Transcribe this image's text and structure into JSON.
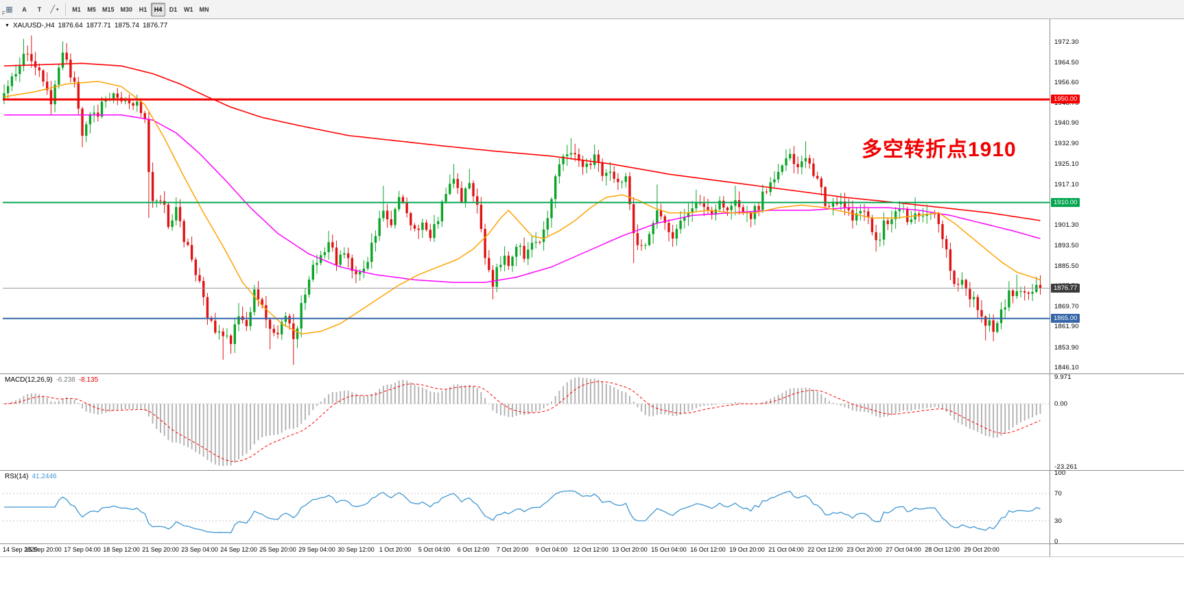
{
  "toolbar": {
    "pattern_button": "▦",
    "f_label": "F",
    "a_button": "A",
    "t_button": "T",
    "tools_icon": "╱",
    "tools_caret": "▾",
    "timeframes": [
      "M1",
      "M5",
      "M15",
      "M30",
      "H1",
      "H4",
      "D1",
      "W1",
      "MN"
    ],
    "active_timeframe": "H4"
  },
  "chart": {
    "collapse_icon": "▼",
    "symbol_period": "XAUUSD-,H4",
    "open": "1876.64",
    "high": "1877.71",
    "low": "1875.74",
    "close": "1876.77",
    "annotation": "多空转折点1910",
    "annotation_color": "#f00000",
    "price_scale_labels": [
      "1972.30",
      "1964.50",
      "1956.60",
      "1948.70",
      "1940.90",
      "1932.90",
      "1925.10",
      "1917.10",
      "1909.30",
      "1901.30",
      "1893.50",
      "1885.50",
      "1877.70",
      "1869.70",
      "1861.90",
      "1853.90",
      "1846.10"
    ],
    "levels": [
      {
        "price": 1950.0,
        "label": "1950.00",
        "color": "#f40000",
        "thickness": 3
      },
      {
        "price": 1910.0,
        "label": "1910.00",
        "color": "#00a650",
        "thickness": 2
      },
      {
        "price": 1865.0,
        "label": "1865.00",
        "color": "#3465a8",
        "thickness": 2
      }
    ],
    "current_price": {
      "price": 1876.77,
      "label": "1876.77",
      "line_color": "#9a9a9a",
      "tag_bg": "#3c3c3c"
    },
    "time_labels": [
      "14 Sep 2020",
      "15 Sep 20:00",
      "17 Sep 04:00",
      "18 Sep 12:00",
      "21 Sep 20:00",
      "23 Sep 04:00",
      "24 Sep 12:00",
      "25 Sep 20:00",
      "29 Sep 04:00",
      "30 Sep 12:00",
      "1 Oct 20:00",
      "5 Oct 04:00",
      "6 Oct 12:00",
      "7 Oct 20:00",
      "9 Oct 04:00",
      "12 Oct 12:00",
      "13 Oct 20:00",
      "15 Oct 04:00",
      "16 Oct 12:00",
      "19 Oct 20:00",
      "21 Oct 04:00",
      "22 Oct 12:00",
      "23 Oct 20:00",
      "27 Oct 04:00",
      "28 Oct 12:00",
      "29 Oct 20:00"
    ]
  },
  "chart_data": {
    "type": "candlestick",
    "symbol": "XAUUSD",
    "timeframe": "H4",
    "candle_count": 266,
    "y_range": [
      1844.2,
      1980.6
    ],
    "up_color": "#0ba426",
    "down_color": "#e01212",
    "last_price": 1876.77,
    "price_path": [
      [
        0,
        1954
      ],
      [
        3,
        1960
      ],
      [
        6,
        1969
      ],
      [
        8,
        1964
      ],
      [
        10,
        1957
      ],
      [
        12,
        1948
      ],
      [
        14,
        1962
      ],
      [
        15,
        1969
      ],
      [
        16,
        1964
      ],
      [
        18,
        1956
      ],
      [
        20,
        1938
      ],
      [
        22,
        1946
      ],
      [
        24,
        1944
      ],
      [
        26,
        1950
      ],
      [
        28,
        1953
      ],
      [
        30,
        1948
      ],
      [
        32,
        1947
      ],
      [
        34,
        1950
      ],
      [
        36,
        1941
      ],
      [
        37,
        1920
      ],
      [
        38,
        1910
      ],
      [
        40,
        1912
      ],
      [
        42,
        1902
      ],
      [
        44,
        1907
      ],
      [
        46,
        1896
      ],
      [
        48,
        1888
      ],
      [
        50,
        1880
      ],
      [
        52,
        1866
      ],
      [
        54,
        1858
      ],
      [
        56,
        1860
      ],
      [
        58,
        1856
      ],
      [
        60,
        1868
      ],
      [
        62,
        1862
      ],
      [
        64,
        1875
      ],
      [
        66,
        1868
      ],
      [
        68,
        1861
      ],
      [
        70,
        1857
      ],
      [
        72,
        1866
      ],
      [
        74,
        1856
      ],
      [
        76,
        1870
      ],
      [
        78,
        1881
      ],
      [
        80,
        1888
      ],
      [
        83,
        1894
      ],
      [
        85,
        1887
      ],
      [
        87,
        1892
      ],
      [
        89,
        1885
      ],
      [
        91,
        1882
      ],
      [
        93,
        1889
      ],
      [
        95,
        1899
      ],
      [
        97,
        1907
      ],
      [
        99,
        1902
      ],
      [
        101,
        1910
      ],
      [
        103,
        1906
      ],
      [
        105,
        1899
      ],
      [
        107,
        1902
      ],
      [
        109,
        1897
      ],
      [
        111,
        1904
      ],
      [
        113,
        1914
      ],
      [
        115,
        1917
      ],
      [
        117,
        1912
      ],
      [
        119,
        1918
      ],
      [
        121,
        1907
      ],
      [
        123,
        1889
      ],
      [
        125,
        1878
      ],
      [
        127,
        1888
      ],
      [
        129,
        1887
      ],
      [
        131,
        1894
      ],
      [
        133,
        1889
      ],
      [
        135,
        1896
      ],
      [
        137,
        1895
      ],
      [
        139,
        1904
      ],
      [
        141,
        1919
      ],
      [
        143,
        1927
      ],
      [
        145,
        1931
      ],
      [
        147,
        1927
      ],
      [
        149,
        1924
      ],
      [
        151,
        1929
      ],
      [
        153,
        1921
      ],
      [
        155,
        1924
      ],
      [
        157,
        1916
      ],
      [
        159,
        1921
      ],
      [
        161,
        1896
      ],
      [
        163,
        1892
      ],
      [
        165,
        1899
      ],
      [
        167,
        1907
      ],
      [
        169,
        1902
      ],
      [
        171,
        1897
      ],
      [
        173,
        1902
      ],
      [
        175,
        1907
      ],
      [
        177,
        1911
      ],
      [
        179,
        1907
      ],
      [
        181,
        1904
      ],
      [
        183,
        1909
      ],
      [
        185,
        1907
      ],
      [
        187,
        1911
      ],
      [
        189,
        1907
      ],
      [
        191,
        1904
      ],
      [
        193,
        1909
      ],
      [
        195,
        1916
      ],
      [
        197,
        1919
      ],
      [
        199,
        1924
      ],
      [
        201,
        1927
      ],
      [
        203,
        1924
      ],
      [
        205,
        1929
      ],
      [
        207,
        1921
      ],
      [
        209,
        1914
      ],
      [
        211,
        1907
      ],
      [
        213,
        1911
      ],
      [
        215,
        1907
      ],
      [
        217,
        1904
      ],
      [
        219,
        1907
      ],
      [
        221,
        1902
      ],
      [
        223,
        1894
      ],
      [
        225,
        1901
      ],
      [
        227,
        1904
      ],
      [
        229,
        1907
      ],
      [
        231,
        1904
      ],
      [
        233,
        1907
      ],
      [
        235,
        1904
      ],
      [
        237,
        1907
      ],
      [
        239,
        1902
      ],
      [
        241,
        1893
      ],
      [
        243,
        1877
      ],
      [
        245,
        1879
      ],
      [
        247,
        1874
      ],
      [
        249,
        1869
      ],
      [
        251,
        1864
      ],
      [
        253,
        1861
      ],
      [
        255,
        1867
      ],
      [
        257,
        1874
      ],
      [
        259,
        1877
      ],
      [
        261,
        1876
      ],
      [
        263,
        1875
      ],
      [
        265,
        1876.8
      ]
    ],
    "wick_events": [
      [
        5,
        "high",
        1973.5
      ],
      [
        7,
        "high",
        1974.8
      ],
      [
        12,
        "low",
        1944
      ],
      [
        15,
        "high",
        1972.5
      ],
      [
        20,
        "low",
        1931.5
      ],
      [
        37,
        "low",
        1904
      ],
      [
        44,
        "high",
        1912
      ],
      [
        56,
        "low",
        1849
      ],
      [
        60,
        "high",
        1871
      ],
      [
        64,
        "high",
        1878
      ],
      [
        68,
        "low",
        1853
      ],
      [
        74,
        "low",
        1847
      ],
      [
        83,
        "high",
        1899
      ],
      [
        97,
        "high",
        1916.5
      ],
      [
        101,
        "high",
        1914
      ],
      [
        115,
        "high",
        1925
      ],
      [
        119,
        "high",
        1923
      ],
      [
        125,
        "low",
        1872.5
      ],
      [
        145,
        "high",
        1935
      ],
      [
        151,
        "high",
        1932.5
      ],
      [
        161,
        "low",
        1886.5
      ],
      [
        167,
        "high",
        1917
      ],
      [
        177,
        "high",
        1915
      ],
      [
        187,
        "high",
        1916.5
      ],
      [
        205,
        "high",
        1933.8
      ],
      [
        223,
        "low",
        1891
      ],
      [
        233,
        "high",
        1912
      ],
      [
        251,
        "low",
        1856.5
      ],
      [
        259,
        "high",
        1882
      ],
      [
        265,
        "high",
        1879
      ]
    ],
    "ma_lines": [
      {
        "name": "ma-slow-red",
        "color": "#ff0000",
        "width": 1.6,
        "path": [
          [
            0,
            1963
          ],
          [
            20,
            1964
          ],
          [
            30,
            1963
          ],
          [
            38,
            1960
          ],
          [
            45,
            1956
          ],
          [
            52,
            1951
          ],
          [
            58,
            1947
          ],
          [
            66,
            1943
          ],
          [
            75,
            1940
          ],
          [
            88,
            1936
          ],
          [
            100,
            1934
          ],
          [
            112,
            1932
          ],
          [
            125,
            1930
          ],
          [
            140,
            1928
          ],
          [
            155,
            1925
          ],
          [
            170,
            1921
          ],
          [
            185,
            1918
          ],
          [
            200,
            1915
          ],
          [
            215,
            1912
          ],
          [
            228,
            1910
          ],
          [
            240,
            1908
          ],
          [
            252,
            1906
          ],
          [
            265,
            1903
          ]
        ]
      },
      {
        "name": "ma-mid-magenta",
        "color": "#ff00ff",
        "width": 1.5,
        "path": [
          [
            0,
            1944
          ],
          [
            30,
            1944
          ],
          [
            38,
            1942
          ],
          [
            44,
            1937
          ],
          [
            50,
            1929
          ],
          [
            57,
            1918
          ],
          [
            63,
            1908
          ],
          [
            70,
            1898
          ],
          [
            78,
            1890
          ],
          [
            86,
            1885
          ],
          [
            95,
            1882
          ],
          [
            105,
            1880
          ],
          [
            115,
            1879
          ],
          [
            123,
            1879
          ],
          [
            131,
            1881
          ],
          [
            140,
            1885
          ],
          [
            149,
            1891
          ],
          [
            158,
            1897
          ],
          [
            167,
            1902
          ],
          [
            176,
            1905
          ],
          [
            186,
            1906
          ],
          [
            196,
            1907
          ],
          [
            206,
            1907
          ],
          [
            216,
            1908
          ],
          [
            226,
            1908
          ],
          [
            234,
            1907
          ],
          [
            242,
            1905
          ],
          [
            250,
            1902
          ],
          [
            258,
            1899
          ],
          [
            265,
            1896
          ]
        ]
      },
      {
        "name": "ma-fast-orange",
        "color": "#ffa200",
        "width": 1.5,
        "path": [
          [
            0,
            1951
          ],
          [
            8,
            1953
          ],
          [
            16,
            1956
          ],
          [
            24,
            1957
          ],
          [
            30,
            1955
          ],
          [
            36,
            1948
          ],
          [
            41,
            1935
          ],
          [
            46,
            1920
          ],
          [
            51,
            1906
          ],
          [
            56,
            1893
          ],
          [
            61,
            1879
          ],
          [
            66,
            1870
          ],
          [
            71,
            1863
          ],
          [
            76,
            1859
          ],
          [
            81,
            1860
          ],
          [
            86,
            1863
          ],
          [
            91,
            1868
          ],
          [
            96,
            1873
          ],
          [
            101,
            1878
          ],
          [
            106,
            1882
          ],
          [
            111,
            1885
          ],
          [
            116,
            1888
          ],
          [
            120,
            1892
          ],
          [
            124,
            1898
          ],
          [
            127,
            1904
          ],
          [
            129,
            1907
          ],
          [
            132,
            1902
          ],
          [
            135,
            1897
          ],
          [
            138,
            1896
          ],
          [
            142,
            1899
          ],
          [
            146,
            1903
          ],
          [
            150,
            1908
          ],
          [
            154,
            1912
          ],
          [
            158,
            1913
          ],
          [
            162,
            1911
          ],
          [
            166,
            1908
          ],
          [
            170,
            1906
          ],
          [
            175,
            1906
          ],
          [
            180,
            1907
          ],
          [
            186,
            1906
          ],
          [
            192,
            1906
          ],
          [
            198,
            1908
          ],
          [
            204,
            1909
          ],
          [
            210,
            1908
          ],
          [
            216,
            1906
          ],
          [
            222,
            1904
          ],
          [
            228,
            1904
          ],
          [
            234,
            1905
          ],
          [
            239,
            1906
          ],
          [
            243,
            1902
          ],
          [
            247,
            1897
          ],
          [
            251,
            1892
          ],
          [
            255,
            1887
          ],
          [
            259,
            1883
          ],
          [
            263,
            1881
          ],
          [
            265,
            1880
          ]
        ]
      }
    ]
  },
  "macd_panel": {
    "name": "MACD(12,26,9)",
    "value_main": "-6.238",
    "value_signal": "-8.135",
    "scale_labels": [
      "9.971",
      "0.00",
      "-23.261"
    ],
    "range": [
      -23.261,
      9.971
    ],
    "hist_color": "#b4b4b4",
    "signal_color": "#ff0000"
  },
  "rsi_panel": {
    "name": "RSI(14)",
    "value": "41.2446",
    "scale_labels": [
      "100",
      "70",
      "30",
      "0"
    ],
    "levels": [
      70,
      30
    ],
    "line_color": "#3e96d2"
  }
}
